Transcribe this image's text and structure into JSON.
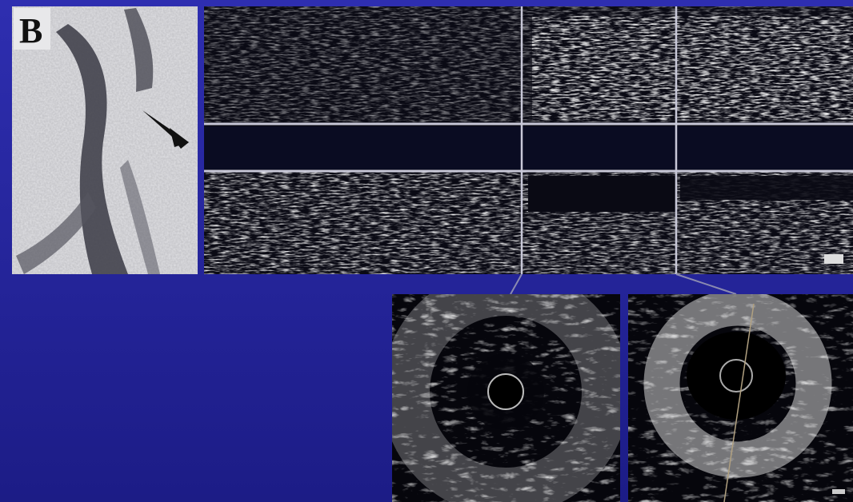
{
  "panel": {
    "label": "B"
  }
}
